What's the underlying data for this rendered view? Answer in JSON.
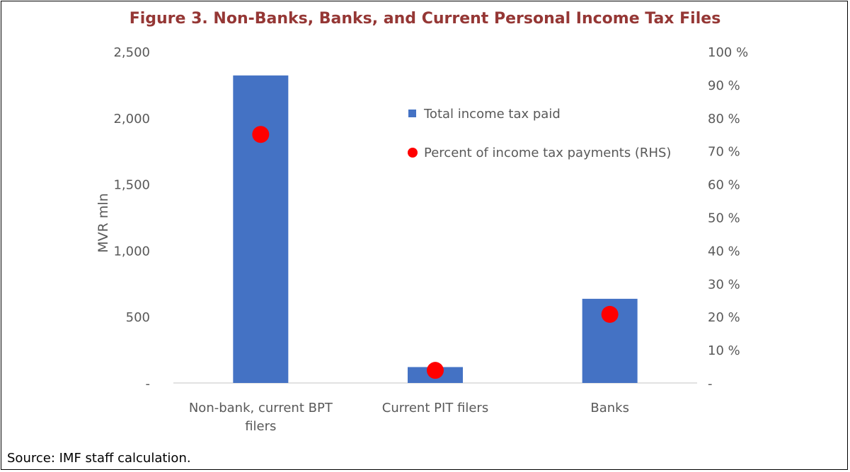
{
  "figure": {
    "title": "Figure 3. Non-Banks, Banks, and Current Personal Income Tax Files",
    "source": "Source: IMF staff calculation."
  },
  "chart_data": {
    "type": "bar",
    "title": "Figure 3. Non-Banks, Banks, and Current Personal Income Tax Files",
    "categories": [
      [
        "Non-bank, current BPT",
        "filers"
      ],
      [
        "Current PIT filers"
      ],
      [
        "Banks"
      ]
    ],
    "ylabel": "MVR mln",
    "ylabel_right": "",
    "ylim": [
      0,
      2500
    ],
    "ylim_right": [
      0,
      100
    ],
    "yticks": [
      0,
      500,
      1000,
      1500,
      2000,
      2500
    ],
    "ytick_labels": [
      "-",
      "500",
      "1,000",
      "1,500",
      "2,000",
      "2,500"
    ],
    "yticks_right": [
      0,
      10,
      20,
      30,
      40,
      50,
      60,
      70,
      80,
      90,
      100
    ],
    "ytick_labels_right": [
      "-",
      "10 %",
      "20 %",
      "30 %",
      "40 %",
      "50 %",
      "60 %",
      "70 %",
      "80 %",
      "90 %",
      "100 %"
    ],
    "grid": false,
    "legend_position": "upper-middle-right",
    "series": [
      {
        "name": "Total income tax paid",
        "type": "bar",
        "axis": "left",
        "color": "#4472C4",
        "values": [
          2320,
          120,
          635
        ]
      },
      {
        "name": "Percent of income tax payments (RHS)",
        "type": "scatter",
        "axis": "right",
        "color": "#FF0000",
        "values": [
          75,
          3.8,
          20.7
        ]
      }
    ]
  }
}
